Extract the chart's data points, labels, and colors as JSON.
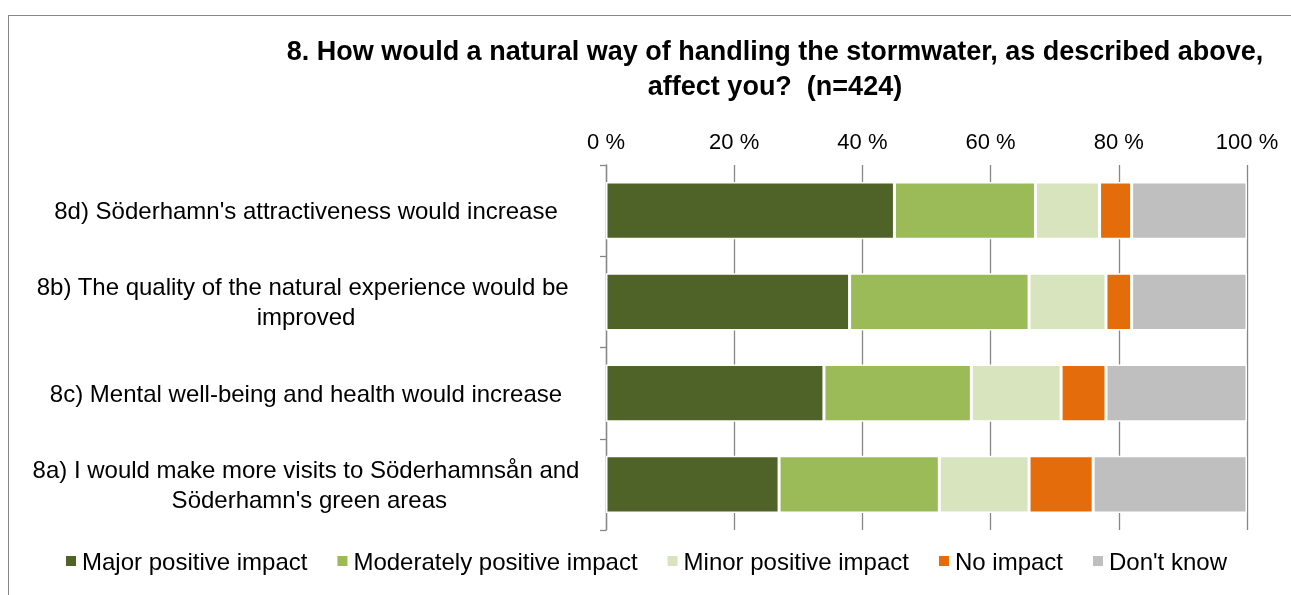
{
  "chart_data": {
    "type": "bar",
    "orientation": "horizontal",
    "stacked": true,
    "title": "8. How would a natural way of handling the stormwater, as described above, affect you?  (n=424)",
    "categories": [
      "8d) Söderhamn's attractiveness would increase",
      "8b) The quality of the natural experience would be improved",
      "8c) Mental well-being and health would increase",
      "8a) I would make more visits to Söderhamnsån and Söderhamn's green areas"
    ],
    "series": [
      {
        "name": "Major positive impact",
        "color": "#4f6228",
        "values": [
          45,
          38,
          34,
          27
        ]
      },
      {
        "name": "Moderately positive impact",
        "color": "#9bbb59",
        "values": [
          22,
          28,
          23,
          25
        ]
      },
      {
        "name": "Minor positive impact",
        "color": "#d7e4bd",
        "values": [
          10,
          12,
          14,
          14
        ]
      },
      {
        "name": "No impact",
        "color": "#e46c0a",
        "values": [
          5,
          4,
          7,
          10
        ]
      },
      {
        "name": "Don't know",
        "color": "#bfbfbf",
        "values": [
          18,
          18,
          22,
          24
        ]
      }
    ],
    "xlim": [
      0,
      100
    ],
    "xticks": [
      {
        "value": 0,
        "label": "0 %"
      },
      {
        "value": 20,
        "label": "20 %"
      },
      {
        "value": 40,
        "label": "40 %"
      },
      {
        "value": 60,
        "label": "60 %"
      },
      {
        "value": 80,
        "label": "80 %"
      },
      {
        "value": 100,
        "label": "100 %"
      }
    ],
    "grid": "x",
    "legend": "bottom"
  }
}
